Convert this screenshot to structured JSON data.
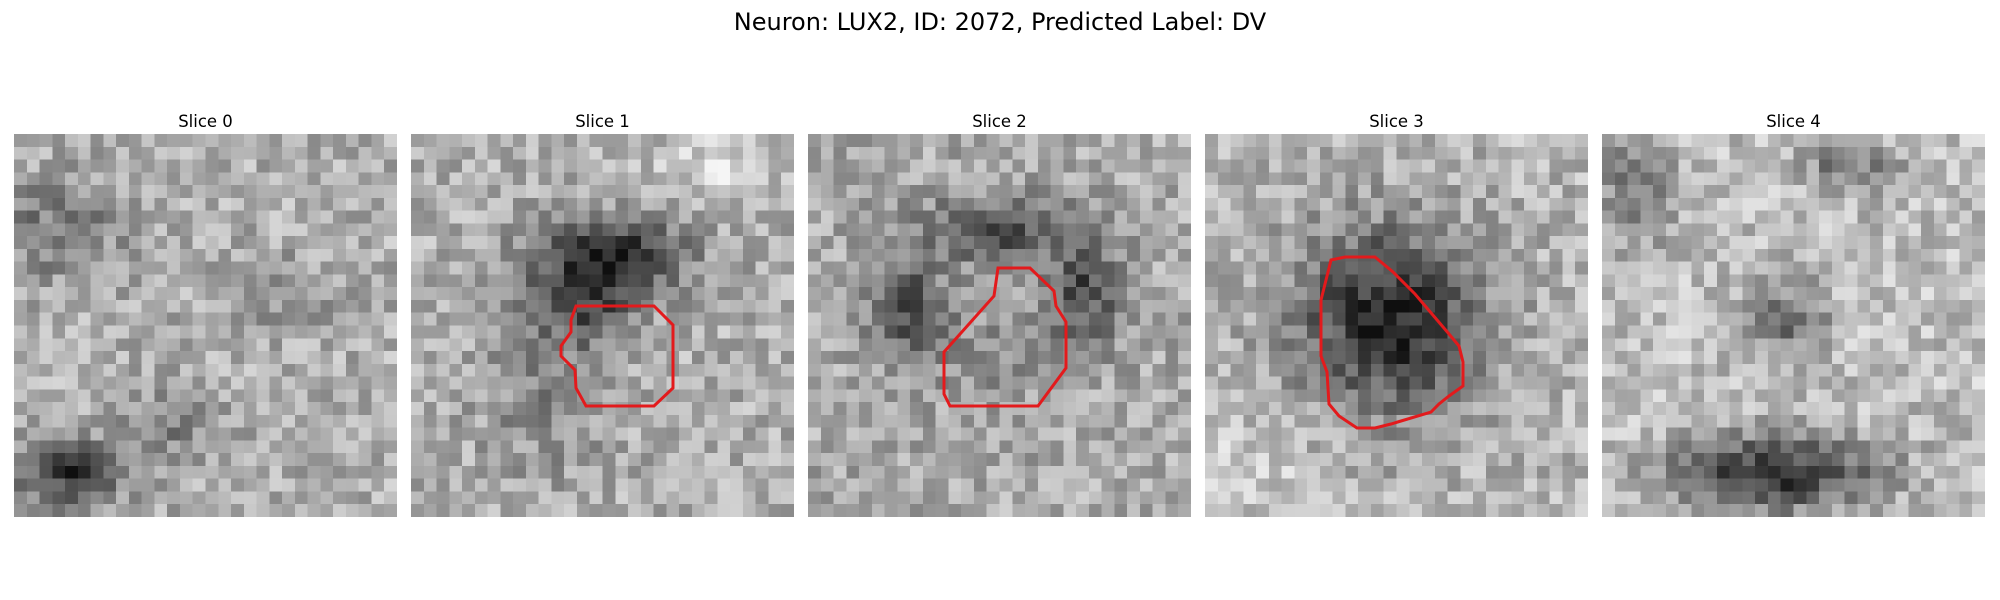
{
  "title": "Neuron: LUX2, ID: 2072, Predicted Label: DV",
  "colors": {
    "contour": "#e31a1c"
  },
  "panels": [
    {
      "title": "Slice 0",
      "has_contour": false
    },
    {
      "title": "Slice 1",
      "has_contour": true
    },
    {
      "title": "Slice 2",
      "has_contour": true
    },
    {
      "title": "Slice 3",
      "has_contour": true
    },
    {
      "title": "Slice 4",
      "has_contour": false
    }
  ]
}
